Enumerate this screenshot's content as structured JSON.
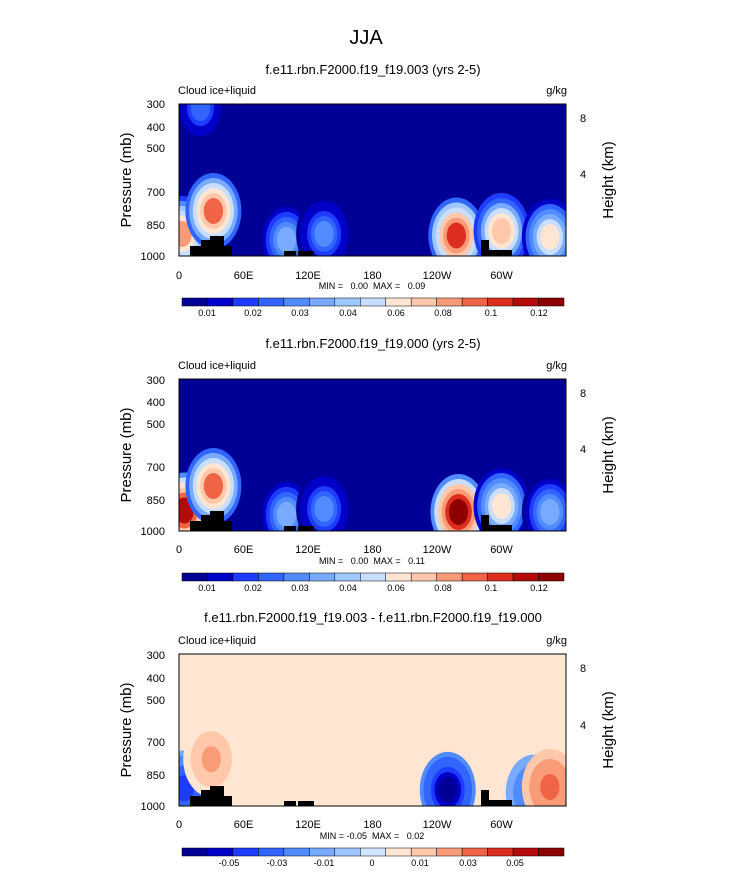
{
  "figure": {
    "title": "JJA"
  },
  "chart_data": [
    {
      "type": "heatmap",
      "title": "f.e11.rbn.F2000.f19_f19.003 (yrs 2-5)",
      "left_label": "Cloud ice+liquid",
      "right_label": "g/kg",
      "ylabel": "Pressure (mb)",
      "y2label": "Height (km)",
      "x_ticks": [
        "0",
        "60E",
        "120E",
        "180",
        "120W",
        "60W"
      ],
      "y_ticks": [
        "300",
        "400",
        "500",
        "700",
        "850",
        "1000"
      ],
      "y2_ticks": [
        "8",
        "4"
      ],
      "stats": "MIN =   0.00  MAX =   0.09",
      "min": 0.0,
      "max": 0.09,
      "colorbar_labels": [
        "0.01",
        "0.02",
        "0.03",
        "0.04",
        "0.06",
        "0.08",
        "0.1",
        "0.12"
      ],
      "blobs": [
        {
          "lon": 3,
          "p": 840,
          "v": 0.07
        },
        {
          "lon": 32,
          "p": 700,
          "v": 0.08
        },
        {
          "lon": 100,
          "p": 880,
          "v": 0.03
        },
        {
          "lon": 135,
          "p": 840,
          "v": 0.025
        },
        {
          "lon": 258,
          "p": 850,
          "v": 0.09
        },
        {
          "lon": 300,
          "p": 820,
          "v": 0.06
        },
        {
          "lon": 345,
          "p": 860,
          "v": 0.05
        },
        {
          "lon": 20,
          "p": 310,
          "v": 0.02
        }
      ]
    },
    {
      "type": "heatmap",
      "title": "f.e11.rbn.F2000.f19_f19.000 (yrs 2-5)",
      "left_label": "Cloud ice+liquid",
      "right_label": "g/kg",
      "ylabel": "Pressure (mb)",
      "y2label": "Height (km)",
      "x_ticks": [
        "0",
        "60E",
        "120E",
        "180",
        "120W",
        "60W"
      ],
      "y_ticks": [
        "300",
        "400",
        "500",
        "700",
        "850",
        "1000"
      ],
      "y2_ticks": [
        "8",
        "4"
      ],
      "stats": "MIN =   0.00  MAX =   0.11",
      "min": 0.0,
      "max": 0.11,
      "colorbar_labels": [
        "0.01",
        "0.02",
        "0.03",
        "0.04",
        "0.06",
        "0.08",
        "0.1",
        "0.12"
      ],
      "blobs": [
        {
          "lon": 5,
          "p": 850,
          "v": 0.1
        },
        {
          "lon": 32,
          "p": 700,
          "v": 0.08
        },
        {
          "lon": 100,
          "p": 880,
          "v": 0.03
        },
        {
          "lon": 135,
          "p": 840,
          "v": 0.025
        },
        {
          "lon": 260,
          "p": 860,
          "v": 0.11
        },
        {
          "lon": 300,
          "p": 820,
          "v": 0.05
        },
        {
          "lon": 345,
          "p": 860,
          "v": 0.03
        }
      ]
    },
    {
      "type": "heatmap",
      "title": "f.e11.rbn.F2000.f19_f19.003 - f.e11.rbn.F2000.f19_f19.000",
      "left_label": "Cloud ice+liquid",
      "right_label": "g/kg",
      "ylabel": "Pressure (mb)",
      "y2label": "Height (km)",
      "x_ticks": [
        "0",
        "60E",
        "120E",
        "180",
        "120W",
        "60W"
      ],
      "y_ticks": [
        "300",
        "400",
        "500",
        "700",
        "850",
        "1000"
      ],
      "y2_ticks": [
        "8",
        "4"
      ],
      "stats": "MIN = -0.05  MAX =   0.02",
      "min": -0.05,
      "max": 0.02,
      "colorbar_labels": [
        "-0.05",
        "-0.03",
        "-0.01",
        "0",
        "0.01",
        "0.03",
        "0.05"
      ],
      "blobs": [
        {
          "lon": 5,
          "p": 870,
          "v": -0.03
        },
        {
          "lon": 30,
          "p": 690,
          "v": 0.01
        },
        {
          "lon": 250,
          "p": 880,
          "v": -0.05
        },
        {
          "lon": 330,
          "p": 900,
          "v": -0.02
        },
        {
          "lon": 345,
          "p": 860,
          "v": 0.02
        },
        {
          "lon": 115,
          "p": 350,
          "v": 0.004
        },
        {
          "lon": 215,
          "p": 330,
          "v": 0.004
        }
      ]
    }
  ],
  "colors": {
    "seq": [
      "#000096",
      "#0000c8",
      "#1e3cff",
      "#3264ff",
      "#508cff",
      "#78aaff",
      "#9ec6ff",
      "#c8deff",
      "#ffe6d2",
      "#ffc8aa",
      "#fa9b78",
      "#f06446",
      "#dc2d1e",
      "#b40a0a",
      "#8c0000"
    ],
    "div": [
      "#000096",
      "#0000c8",
      "#1e3cff",
      "#3264ff",
      "#508cff",
      "#78aaff",
      "#9ec6ff",
      "#d2e6ff",
      "#ffe6d2",
      "#ffc8aa",
      "#fa9b78",
      "#f06446",
      "#dc2d1e",
      "#b40a0a",
      "#8c0000"
    ]
  }
}
